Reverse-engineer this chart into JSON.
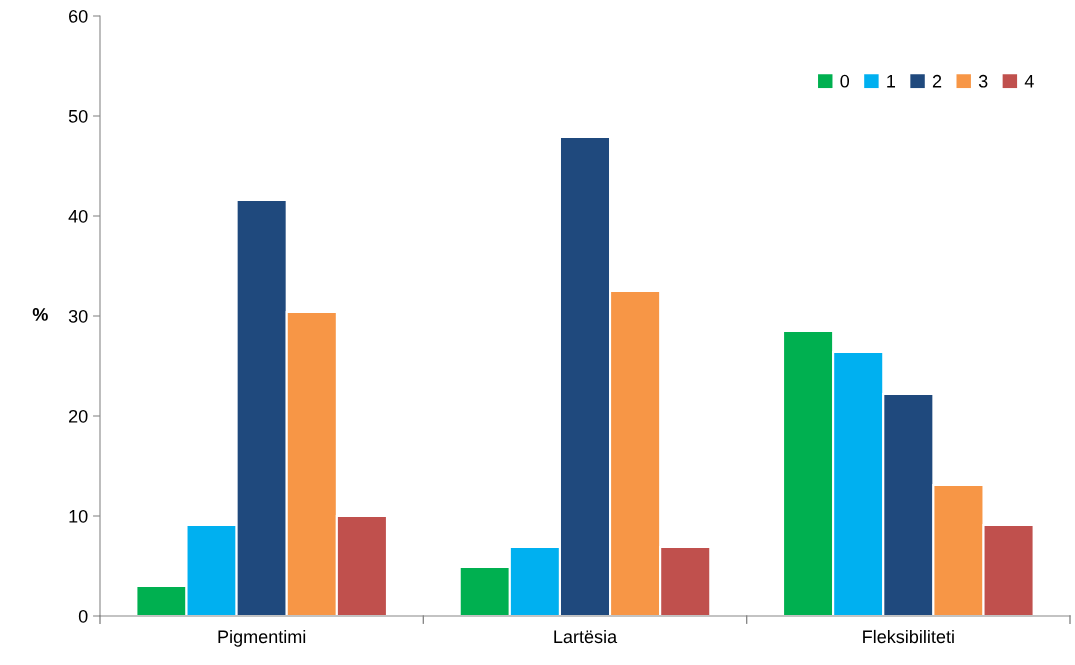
{
  "chart_data": {
    "type": "bar",
    "ylabel": "%",
    "categories": [
      "Pigmentimi",
      "Lartësia",
      "Fleksibiliteti"
    ],
    "series": [
      {
        "name": "0",
        "color": "#00b050",
        "values": [
          3.0,
          4.9,
          28.5
        ]
      },
      {
        "name": "1",
        "color": "#00b0f0",
        "values": [
          9.1,
          6.9,
          26.4
        ]
      },
      {
        "name": "2",
        "color": "#1f497d",
        "values": [
          41.6,
          47.9,
          22.2
        ]
      },
      {
        "name": "3",
        "color": "#f79646",
        "values": [
          30.4,
          32.5,
          13.1
        ]
      },
      {
        "name": "4",
        "color": "#c0504d",
        "values": [
          10.0,
          6.9,
          9.1
        ]
      }
    ],
    "ylim": [
      0,
      60
    ],
    "yticks": [
      0,
      10,
      20,
      30,
      40,
      50,
      60
    ],
    "grid": false,
    "legend": "top right"
  }
}
